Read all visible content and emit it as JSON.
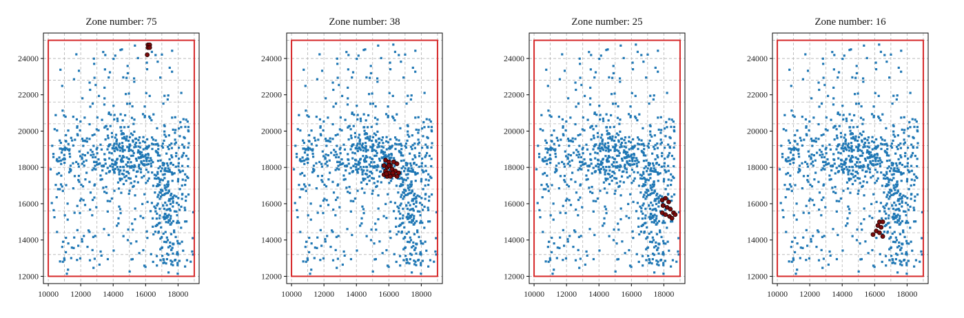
{
  "figure": {
    "colors": {
      "points": "#1f77b4",
      "highlight_fill": "#7a0a0a",
      "highlight_edge": "#1a0000",
      "boundary": "#d62728",
      "grid": "#b0b0b0",
      "axes": "#000000"
    }
  },
  "chart_data": [
    {
      "type": "scatter",
      "title": "Zone number: 75",
      "xlim": [
        9700,
        19300
      ],
      "ylim": [
        11600,
        25400
      ],
      "xticks": [
        10000,
        12000,
        14000,
        16000,
        18000
      ],
      "yticks": [
        12000,
        14000,
        16000,
        18000,
        20000,
        22000,
        24000
      ],
      "grid": true,
      "grid_x": [
        10000,
        11000,
        12000,
        13000,
        14000,
        15000,
        16000,
        17000,
        18000,
        19000
      ],
      "grid_y": [
        12000,
        13200,
        14400,
        15600,
        16800,
        18000,
        19200,
        20400,
        21600,
        22800,
        24000,
        25000
      ],
      "boundary": {
        "x": [
          10000,
          19000
        ],
        "y": [
          12000,
          25000
        ]
      },
      "highlight": [
        [
          16150,
          24750
        ],
        [
          16250,
          24750
        ],
        [
          16150,
          24600
        ],
        [
          16250,
          24600
        ],
        [
          16100,
          24200
        ]
      ]
    },
    {
      "type": "scatter",
      "title": "Zone number: 38",
      "xlim": [
        9700,
        19300
      ],
      "ylim": [
        11600,
        25400
      ],
      "xticks": [
        10000,
        12000,
        14000,
        16000,
        18000
      ],
      "yticks": [
        12000,
        14000,
        16000,
        18000,
        20000,
        22000,
        24000
      ],
      "grid": true,
      "grid_x": [
        10000,
        11000,
        12000,
        13000,
        14000,
        15000,
        16000,
        17000,
        18000,
        19000
      ],
      "grid_y": [
        12000,
        13200,
        14400,
        15600,
        16800,
        18000,
        19200,
        20400,
        21600,
        22800,
        24000,
        25000
      ],
      "boundary": {
        "x": [
          10000,
          19000
        ],
        "y": [
          12000,
          25000
        ]
      },
      "highlight": [
        [
          15800,
          18400
        ],
        [
          16000,
          18300
        ],
        [
          15700,
          18100
        ],
        [
          15900,
          18000
        ],
        [
          16100,
          18100
        ],
        [
          16300,
          18300
        ],
        [
          16500,
          18200
        ],
        [
          15800,
          17800
        ],
        [
          16000,
          17700
        ],
        [
          16200,
          17900
        ],
        [
          16400,
          17800
        ],
        [
          15700,
          17600
        ],
        [
          15900,
          17500
        ],
        [
          16100,
          17500
        ],
        [
          16300,
          17600
        ],
        [
          16600,
          17700
        ],
        [
          16500,
          17500
        ],
        [
          16000,
          18100
        ],
        [
          15850,
          17650
        ],
        [
          16250,
          17700
        ]
      ]
    },
    {
      "type": "scatter",
      "title": "Zone number: 25",
      "xlim": [
        9700,
        19300
      ],
      "ylim": [
        11600,
        25400
      ],
      "xticks": [
        10000,
        12000,
        14000,
        16000,
        18000
      ],
      "yticks": [
        12000,
        14000,
        16000,
        18000,
        20000,
        22000,
        24000
      ],
      "grid": true,
      "grid_x": [
        10000,
        11000,
        12000,
        13000,
        14000,
        15000,
        16000,
        17000,
        18000,
        19000
      ],
      "grid_y": [
        12000,
        13200,
        14400,
        15600,
        16800,
        18000,
        19200,
        20400,
        21600,
        22800,
        24000,
        25000
      ],
      "boundary": {
        "x": [
          10000,
          19000
        ],
        "y": [
          12000,
          25000
        ]
      },
      "highlight": [
        [
          17900,
          16200
        ],
        [
          18100,
          16300
        ],
        [
          18300,
          16100
        ],
        [
          17950,
          15900
        ],
        [
          18200,
          15800
        ],
        [
          18400,
          15700
        ],
        [
          17900,
          15500
        ],
        [
          18100,
          15400
        ],
        [
          18350,
          15300
        ],
        [
          18600,
          15500
        ],
        [
          18500,
          15200
        ],
        [
          18700,
          15400
        ]
      ]
    },
    {
      "type": "scatter",
      "title": "Zone number: 16",
      "xlim": [
        9700,
        19300
      ],
      "ylim": [
        11600,
        25400
      ],
      "xticks": [
        10000,
        12000,
        14000,
        16000,
        18000
      ],
      "yticks": [
        12000,
        14000,
        16000,
        18000,
        20000,
        22000,
        24000
      ],
      "grid": true,
      "grid_x": [
        10000,
        11000,
        12000,
        13000,
        14000,
        15000,
        16000,
        17000,
        18000,
        19000
      ],
      "grid_y": [
        12000,
        13200,
        14400,
        15600,
        16800,
        18000,
        19200,
        20400,
        21600,
        22800,
        24000,
        25000
      ],
      "boundary": {
        "x": [
          10000,
          19000
        ],
        "y": [
          12000,
          25000
        ]
      },
      "highlight": [
        [
          16300,
          15000
        ],
        [
          16500,
          15000
        ],
        [
          16200,
          14800
        ],
        [
          16400,
          14700
        ],
        [
          16100,
          14500
        ],
        [
          16300,
          14400
        ],
        [
          15900,
          14300
        ],
        [
          16500,
          14200
        ]
      ]
    }
  ]
}
